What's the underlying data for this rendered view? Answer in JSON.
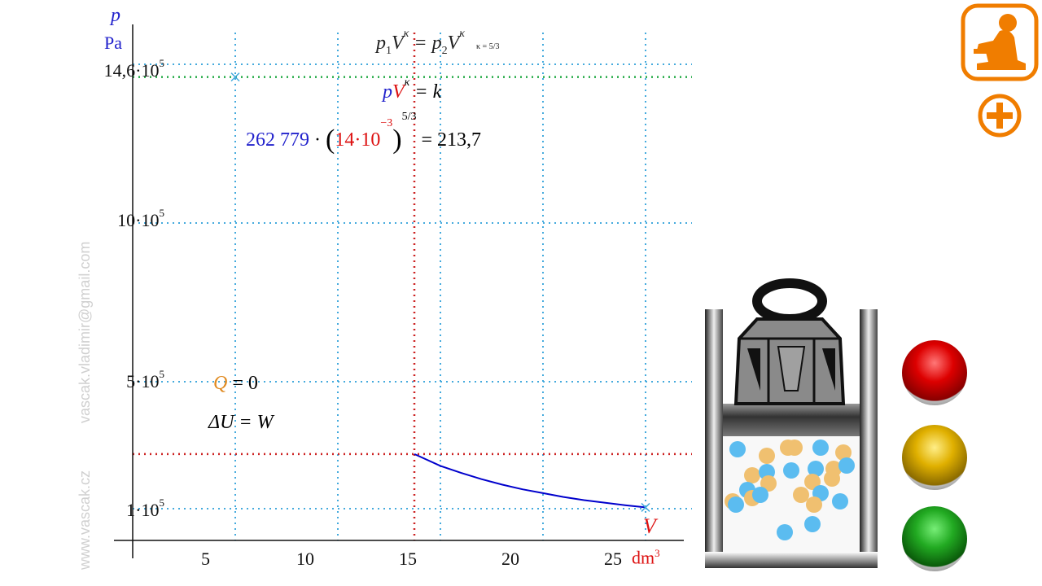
{
  "colors": {
    "axis": "#111111",
    "curve": "#0000cc",
    "guide_red": "#cc2222",
    "guide_green": "#22aa44",
    "grid_blue": "#44aadd",
    "accent_orange": "#f07d00",
    "blue_text": "#2222cc",
    "red_text": "#dd1111",
    "orange_text": "#e08a20"
  },
  "axes": {
    "y_symbol": "p",
    "y_unit": "Pa",
    "x_symbol": "V",
    "x_unit": "dm",
    "x_unit_exp": "3",
    "x_ticks": [
      "5",
      "10",
      "15",
      "20",
      "25"
    ],
    "y_ticks": [
      {
        "mant": "14,6·10",
        "exp": "5"
      },
      {
        "mant": "10·10",
        "exp": "5"
      },
      {
        "mant": "5·10",
        "exp": "5"
      },
      {
        "mant": "1·10",
        "exp": "5"
      }
    ]
  },
  "chart_data": {
    "type": "line",
    "xlabel": "V dm³",
    "ylabel": "p Pa",
    "xlim": [
      0,
      28
    ],
    "ylim": [
      0,
      16
    ],
    "series": [
      {
        "x": [
          13.73,
          15,
          16,
          17,
          18,
          19,
          20,
          21,
          22,
          23,
          24,
          25
        ],
        "y": [
          2.72,
          2.35,
          2.13,
          1.93,
          1.76,
          1.61,
          1.49,
          1.37,
          1.27,
          1.19,
          1.11,
          1.04
        ]
      }
    ],
    "markers": [
      {
        "x": 5,
        "y": 14.6
      },
      {
        "x": 25,
        "y": 1.04
      }
    ],
    "guides": {
      "v_red": 13.73,
      "h_red": 2.72,
      "h_green": 14.6
    }
  },
  "formulas": {
    "f1_left": "p",
    "f1_sub1": "1",
    "f1_V": "V",
    "f1_k": "κ",
    "f1_mid": " = p",
    "f1_sub2": "2",
    "f1_V2": "V",
    "f1_k2": "κ",
    "f1_note": "κ = 5/3",
    "f2_p": "p",
    "f2_V": "V",
    "f2_k": "κ",
    "f2_rest": " = k",
    "f3_const": "262 779",
    "f3_dot": "·",
    "f3_vol": "14·10",
    "f3_volexp": "−3",
    "f3_exp": "5/3",
    "f3_result": "= 213,7",
    "q_label": "Q",
    "q_rest": " = 0",
    "du_label": "ΔU = W"
  },
  "watermark": {
    "email": "vascak.vladimir@gmail.com",
    "site": "www.vascak.cz"
  },
  "buttons": {
    "red": "red",
    "yellow": "yellow",
    "green": "green"
  }
}
